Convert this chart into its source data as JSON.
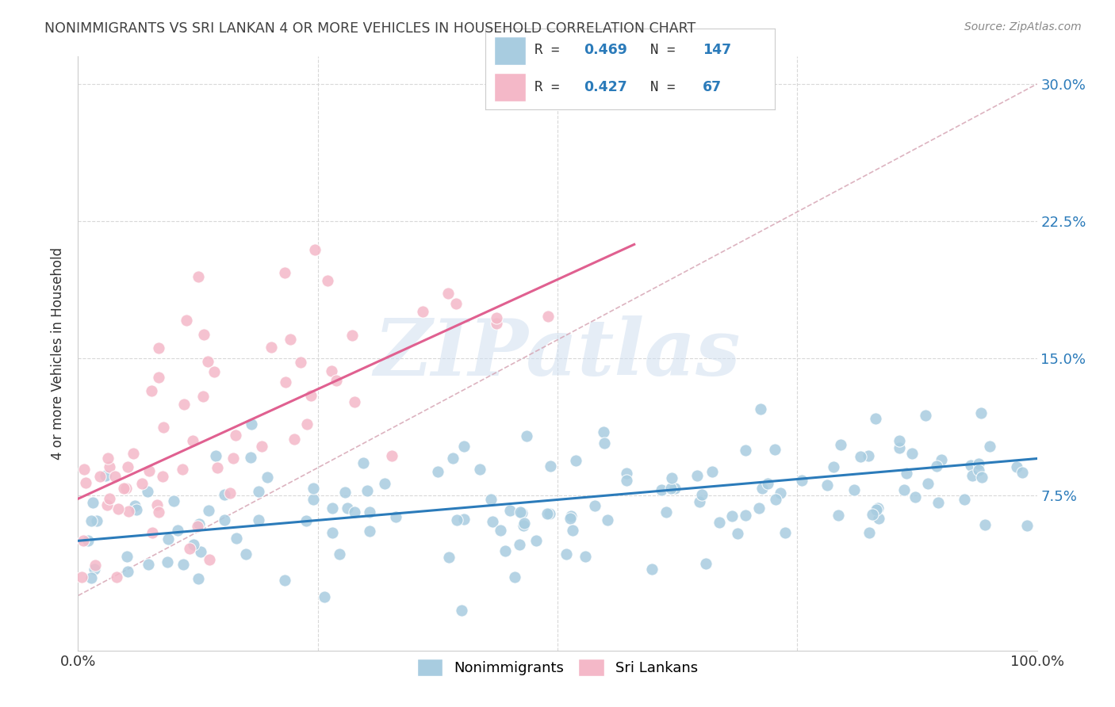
{
  "title": "NONIMMIGRANTS VS SRI LANKAN 4 OR MORE VEHICLES IN HOUSEHOLD CORRELATION CHART",
  "source": "Source: ZipAtlas.com",
  "ylabel": "4 or more Vehicles in Household",
  "xlim": [
    0.0,
    1.0
  ],
  "ylim": [
    -0.01,
    0.315
  ],
  "ytick_labels": [
    "7.5%",
    "15.0%",
    "22.5%",
    "30.0%"
  ],
  "ytick_values": [
    0.075,
    0.15,
    0.225,
    0.3
  ],
  "legend_label1": "Nonimmigrants",
  "legend_label2": "Sri Lankans",
  "R1": 0.469,
  "N1": 147,
  "R2": 0.427,
  "N2": 67,
  "blue_dot_color": "#a8cce0",
  "pink_dot_color": "#f4b8c8",
  "blue_line_color": "#2b7bba",
  "pink_line_color": "#e06090",
  "dashed_line_color": "#d4a0b0",
  "watermark_color": "#d0dff0",
  "background_color": "#ffffff",
  "grid_color": "#d8d8d8",
  "title_color": "#404040",
  "source_color": "#888888",
  "axis_label_color": "#333333",
  "tick_color_right": "#2b7bba",
  "legend_box_color": "#2b7bba",
  "legend_text_black": "#333333"
}
